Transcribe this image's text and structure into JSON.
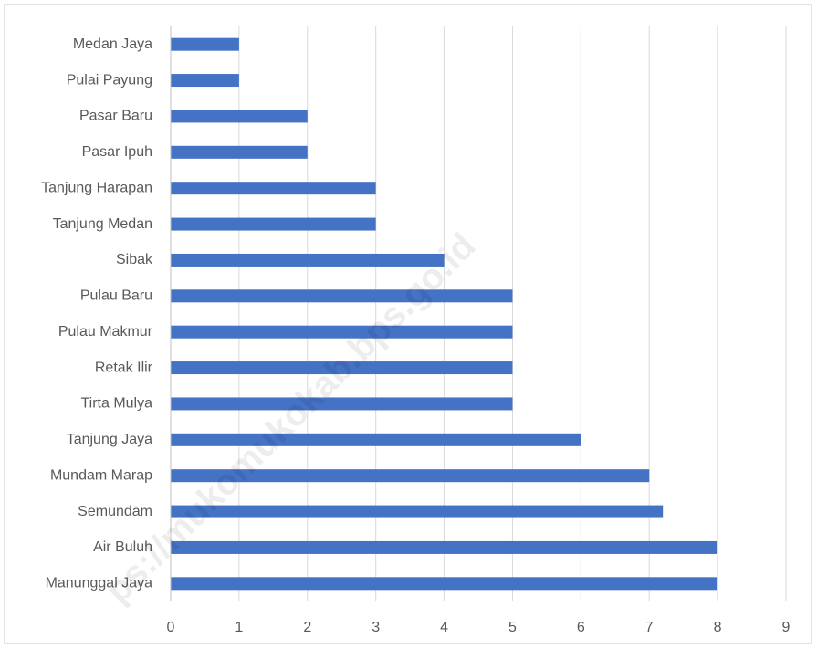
{
  "chart_data": {
    "type": "bar",
    "orientation": "horizontal",
    "categories": [
      "Medan Jaya",
      "Pulai Payung",
      "Pasar Baru",
      "Pasar Ipuh",
      "Tanjung Harapan",
      "Tanjung Medan",
      "Sibak",
      "Pulau Baru",
      "Pulau Makmur",
      "Retak Ilir",
      "Tirta Mulya",
      "Tanjung Jaya",
      "Mundam Marap",
      "Semundam",
      "Air Buluh",
      "Manunggal Jaya"
    ],
    "values": [
      1,
      1,
      2,
      2,
      3,
      3,
      4,
      5,
      5,
      5,
      5,
      6,
      7,
      7.2,
      8,
      8
    ],
    "color": "#4472c4",
    "xlim": [
      0,
      9
    ],
    "xticks": [
      0,
      1,
      2,
      3,
      4,
      5,
      6,
      7,
      8,
      9
    ],
    "grid": true,
    "watermark": "ps://mukomukokab.bps.go.id"
  }
}
